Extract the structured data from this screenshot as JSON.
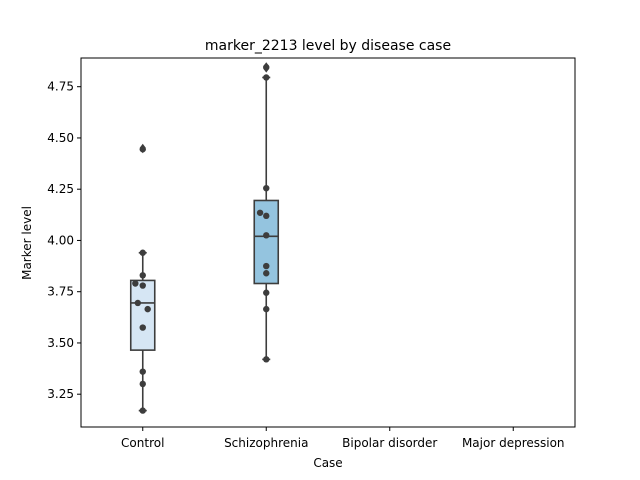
{
  "chart_data": {
    "type": "box",
    "title": "marker_2213 level by disease case",
    "xlabel": "Case",
    "ylabel": "Marker level",
    "categories": [
      "Control",
      "Schizophrenia",
      "Bipolar disorder",
      "Major depression"
    ],
    "ylim": [
      3.09,
      4.89
    ],
    "yticks": [
      3.25,
      3.5,
      3.75,
      4.0,
      4.25,
      4.5,
      4.75
    ],
    "ytick_labels": [
      "3.25",
      "3.50",
      "3.75",
      "4.00",
      "4.25",
      "4.50",
      "4.75"
    ],
    "grid": false,
    "legend": "none",
    "boxes": [
      {
        "category": "Control",
        "color": "#d6e6f4",
        "whisker_low": 3.17,
        "q1": 3.465,
        "median": 3.695,
        "q3": 3.805,
        "whisker_high": 3.94,
        "outliers": [
          4.445,
          4.452
        ]
      },
      {
        "category": "Schizophrenia",
        "color": "#94c4df",
        "whisker_low": 3.42,
        "q1": 3.79,
        "median": 4.02,
        "q3": 4.195,
        "whisker_high": 4.795,
        "outliers": [
          4.838,
          4.85
        ]
      }
    ],
    "points": [
      {
        "category": "Control",
        "jitter": 0.0,
        "y": 3.94
      },
      {
        "category": "Control",
        "jitter": 0.0,
        "y": 3.83
      },
      {
        "category": "Control",
        "jitter": -0.06,
        "y": 3.79
      },
      {
        "category": "Control",
        "jitter": 0.0,
        "y": 3.78
      },
      {
        "category": "Control",
        "jitter": -0.04,
        "y": 3.695
      },
      {
        "category": "Control",
        "jitter": 0.04,
        "y": 3.665
      },
      {
        "category": "Control",
        "jitter": 0.0,
        "y": 3.575
      },
      {
        "category": "Control",
        "jitter": 0.0,
        "y": 3.36
      },
      {
        "category": "Control",
        "jitter": 0.0,
        "y": 3.3
      },
      {
        "category": "Control",
        "jitter": 0.0,
        "y": 3.17
      },
      {
        "category": "Control",
        "jitter": 0.0,
        "y": 4.445
      },
      {
        "category": "Schizophrenia",
        "jitter": 0.0,
        "y": 4.795
      },
      {
        "category": "Schizophrenia",
        "jitter": 0.0,
        "y": 4.845
      },
      {
        "category": "Schizophrenia",
        "jitter": 0.0,
        "y": 4.255
      },
      {
        "category": "Schizophrenia",
        "jitter": -0.05,
        "y": 4.135
      },
      {
        "category": "Schizophrenia",
        "jitter": 0.0,
        "y": 4.12
      },
      {
        "category": "Schizophrenia",
        "jitter": 0.0,
        "y": 4.025
      },
      {
        "category": "Schizophrenia",
        "jitter": 0.0,
        "y": 3.875
      },
      {
        "category": "Schizophrenia",
        "jitter": 0.0,
        "y": 3.84
      },
      {
        "category": "Schizophrenia",
        "jitter": 0.0,
        "y": 3.745
      },
      {
        "category": "Schizophrenia",
        "jitter": 0.0,
        "y": 3.665
      },
      {
        "category": "Schizophrenia",
        "jitter": 0.0,
        "y": 3.42
      }
    ]
  }
}
